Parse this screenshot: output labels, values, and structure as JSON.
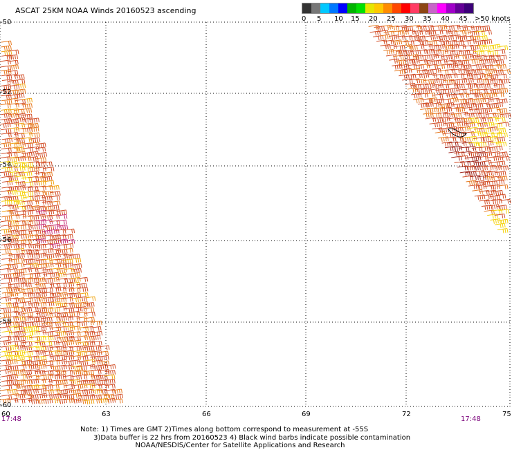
{
  "title": "ASCAT 25KM NOAA Winds 20160523 ascending",
  "legend": {
    "colors": [
      "#333333",
      "#777777",
      "#00c8ff",
      "#0078ff",
      "#0000ff",
      "#00b400",
      "#00e000",
      "#e6e600",
      "#ffc800",
      "#ff8c00",
      "#ff4800",
      "#ff0000",
      "#ff3c64",
      "#8c4614",
      "#c864c8",
      "#ff00ff",
      "#a000c8",
      "#640096",
      "#3c0078"
    ],
    "labels": [
      "0",
      "5",
      "10",
      "15",
      "20",
      "25",
      "30",
      "35",
      "40",
      "45",
      ">50 knots"
    ]
  },
  "lat_labels": [
    "-50",
    "-52",
    "-54",
    "-56",
    "-58",
    "-60"
  ],
  "lon_labels": [
    "60",
    "63",
    "66",
    "69",
    "72",
    "75"
  ],
  "times": [
    "17:48",
    "17:48"
  ],
  "note": "Note: 1) Times are GMT 2)Times along bottom correspond to measurement at -55S\n      3)Data buffer is 22 hrs from 20160523 4) Black wind barbs indicate possible contamination\n                         NOAA/NESDIS/Center for Satellite Applications and Research",
  "wind_colors": {
    "orange_red": "#d2502a",
    "dark_red": "#a0281e",
    "orange": "#e6781e",
    "yellow_orange": "#f0a514",
    "yellow": "#f5d20a",
    "magenta": "#c83278"
  },
  "island_name": ""
}
